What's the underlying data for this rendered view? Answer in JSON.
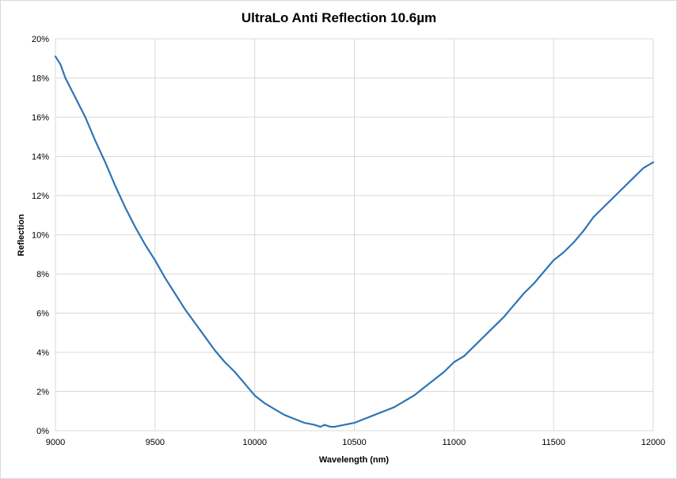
{
  "chart_data": {
    "type": "line",
    "title": "UltraLo Anti Reflection 10.6µm",
    "xlabel": "Wavelength (nm)",
    "ylabel": "Reflection",
    "xlim": [
      9000,
      12000
    ],
    "ylim": [
      0,
      0.2
    ],
    "x_ticks": [
      "9000",
      "9500",
      "10000",
      "10500",
      "11000",
      "11500",
      "12000"
    ],
    "y_ticks": [
      "0%",
      "2%",
      "4%",
      "6%",
      "8%",
      "10%",
      "12%",
      "14%",
      "16%",
      "18%",
      "20%"
    ],
    "grid": true,
    "legend": "none",
    "series": [
      {
        "color": "#2e75b6",
        "x": [
          9000,
          9025,
          9050,
          9100,
          9150,
          9200,
          9250,
          9300,
          9350,
          9400,
          9450,
          9500,
          9550,
          9600,
          9650,
          9700,
          9750,
          9800,
          9850,
          9900,
          9950,
          10000,
          10050,
          10100,
          10150,
          10200,
          10250,
          10300,
          10330,
          10350,
          10380,
          10400,
          10450,
          10500,
          10550,
          10600,
          10650,
          10700,
          10750,
          10800,
          10850,
          10900,
          10950,
          11000,
          11050,
          11100,
          11150,
          11200,
          11250,
          11300,
          11350,
          11400,
          11450,
          11500,
          11550,
          11600,
          11650,
          11700,
          11750,
          11800,
          11850,
          11900,
          11950,
          12000
        ],
        "values": [
          0.191,
          0.187,
          0.18,
          0.17,
          0.16,
          0.148,
          0.137,
          0.125,
          0.114,
          0.104,
          0.095,
          0.087,
          0.078,
          0.07,
          0.062,
          0.055,
          0.048,
          0.041,
          0.035,
          0.03,
          0.024,
          0.018,
          0.014,
          0.011,
          0.008,
          0.006,
          0.004,
          0.003,
          0.002,
          0.003,
          0.002,
          0.002,
          0.003,
          0.004,
          0.006,
          0.008,
          0.01,
          0.012,
          0.015,
          0.018,
          0.022,
          0.026,
          0.03,
          0.035,
          0.038,
          0.043,
          0.048,
          0.053,
          0.058,
          0.064,
          0.07,
          0.075,
          0.081,
          0.087,
          0.091,
          0.096,
          0.102,
          0.109,
          0.114,
          0.119,
          0.124,
          0.129,
          0.134,
          0.137
        ]
      }
    ]
  }
}
